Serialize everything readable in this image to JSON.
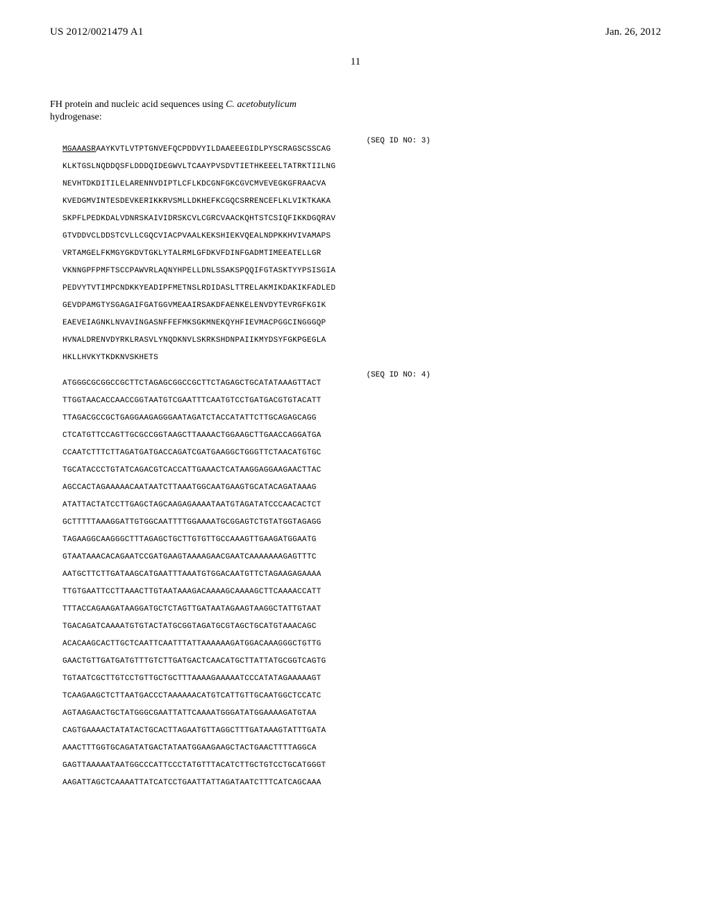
{
  "header": {
    "pub_number": "US 2012/0021479 A1",
    "pub_date": "Jan. 26, 2012",
    "page_number": "11"
  },
  "intro": {
    "text_a": "FH protein and nucleic acid sequences using ",
    "italic": "C. acetobutylicum",
    "text_b": " hydrogenase:"
  },
  "seq1": {
    "seq_id": "(SEQ ID NO: 3)",
    "prefix_underlined": "MGAAASR",
    "line1_rest": "AAYKVTLVTPTGNVEFQCPDDVYILDAAEEEGIDLPYSCRAGSCSSCAG",
    "lines": [
      "KLKTGSLNQDDQSFLDDDQIDEGWVLTCAAYPVSDVTIETHKEEELTATRKTIILNG",
      "NEVHTDKDITILELARENNVDIPTLCFLKDCGNFGKCGVCMVEVEGKGFRAACVA",
      "KVEDGMVINTESDEVKERIKKRVSMLLDKHEFKCGQCSRRENCEFLKLVIKTKAKA",
      "SKPFLPEDKDALVDNRSKAIVIDRSKCVLCGRCVAACKQHTSTCSIQFIKKDGQRAV",
      "GTVDDVCLDDSTCVLLCGQCVIACPVAALKEKSHIEKVQEALNDPKKHVIVAMAPS",
      "VRTAMGELFKMGYGKDVTGKLYTALRMLGFDKVFDINFGADMTIMEEATELLGR",
      "VKNNGPFPMFTSCCPAWVRLAQNYHPELLDNLSSAKSPQQIFGTASKTYYPSISGIA",
      "PEDVYTVTIMPCNDKKYEADIPFMETNSLRDIDASLTTRELAKMIKDAKIKFADLED",
      "GEVDPAMGTYSGAGAIFGATGGVMEAAIRSAKDFAENKELENVDYTEVRGFKGIK",
      "EAEVEIAGNKLNVAVINGASNFFEFMKSGKMNEKQYHFIEVMACPGGCINGGGQP",
      "HVNALDRENVDYRKLRASVLYNQDKNVLSKRKSHDNPAIIKMYDSYFGKPGEGLA",
      "HKLLHVKYTKDKNVSKHETS"
    ]
  },
  "seq2": {
    "seq_id": "(SEQ ID NO: 4)",
    "lines": [
      "ATGGGCGCGGCCGCTTCTAGAGCGGCCGCTTCTAGAGCTGCATATAAAGTTACT",
      "TTGGTAACACCAACCGGTAATGTCGAATTTCAATGTCCTGATGACGTGTACATT",
      "TTAGACGCCGCTGAGGAAGAGGGAATAGATCTACCATATTCTTGCAGAGCAGG",
      "CTCATGTTCCAGTTGCGCCGGTAAGCTTAAAACTGGAAGCTTGAACCAGGATGA",
      "CCAATCTTTCTTAGATGATGACCAGATCGATGAAGGCTGGGTTCTAACATGTGC",
      "TGCATACCCTGTATCAGACGTCACCATTGAAACTCATAAGGAGGAAGAACTTAC",
      "AGCCACTAGAAAAACAATAATCTTAAATGGCAATGAAGTGCATACAGATAAAG",
      "ATATTACTATCCTTGAGCTAGCAAGAGAAAATAATGTAGATATCCCAACACTCT",
      "GCTTTTTAAAGGATTGTGGCAATTTTGGAAAATGCGGAGTCTGTATGGTAGAGG",
      "TAGAAGGCAAGGGCTTTAGAGCTGCTTGTGTTGCCAAAGTTGAAGATGGAATG",
      "GTAATAAACACAGAATCCGATGAAGTAAAAGAACGAATCAAAAAAAGAGTTTC",
      "AATGCTTCTTGATAAGCATGAATTTAAATGTGGACAATGTTCTAGAAGAGAAAA",
      "TTGTGAATTCCTTAAACTTGTAATAAAGACAAAAGCAAAAGCTTCAAAACCATT",
      "TTTACCAGAAGATAAGGATGCTCTAGTTGATAATAGAAGTAAGGCTATTGTAAT",
      "TGACAGATCAAAATGTGTACTATGCGGTAGATGCGTAGCTGCATGTAAACAGC",
      "ACACAAGCACTTGCTCAATTCAATTTATTAAAAAAGATGGACAAAGGGCTGTTG",
      "GAACTGTTGATGATGTTTGTCTTGATGACTCAACATGCTTATTATGCGGTCAGTG",
      "TGTAATCGCTTGTCCTGTTGCTGCTTTAAAAGAAAAATCCCATATAGAAAAAGT",
      "TCAAGAAGCTCTTAATGACCCTAAAAAACATGTCATTGTTGCAATGGCTCCATC",
      "AGTAAGAACTGCTATGGGCGAATTATTCAAAATGGGATATGGAAAAGATGTAA",
      "CAGTGAAAACTATATACTGCACTTAGAATGTTAGGCTTTGATAAAGTATTTGATA",
      "AAACTTTGGTGCAGATATGACTATAATGGAAGAAGCTACTGAACTTTTAGGCA",
      "GAGTTAAAAATAATGGCCCATTCCCTATGTTTACATCTTGCTGTCCTGCATGGGT",
      "AAGATTAGCTCAAAATTATCATCCTGAATTATTAGATAATCTTTCATCAGCAAA"
    ]
  },
  "style": {
    "font_mono": "Courier New",
    "font_serif": "Times New Roman",
    "text_color": "#000000",
    "background_color": "#ffffff",
    "header_fontsize": 15,
    "intro_fontsize": 14,
    "seq_fontsize": 11,
    "seq_line_spacing": 13
  }
}
